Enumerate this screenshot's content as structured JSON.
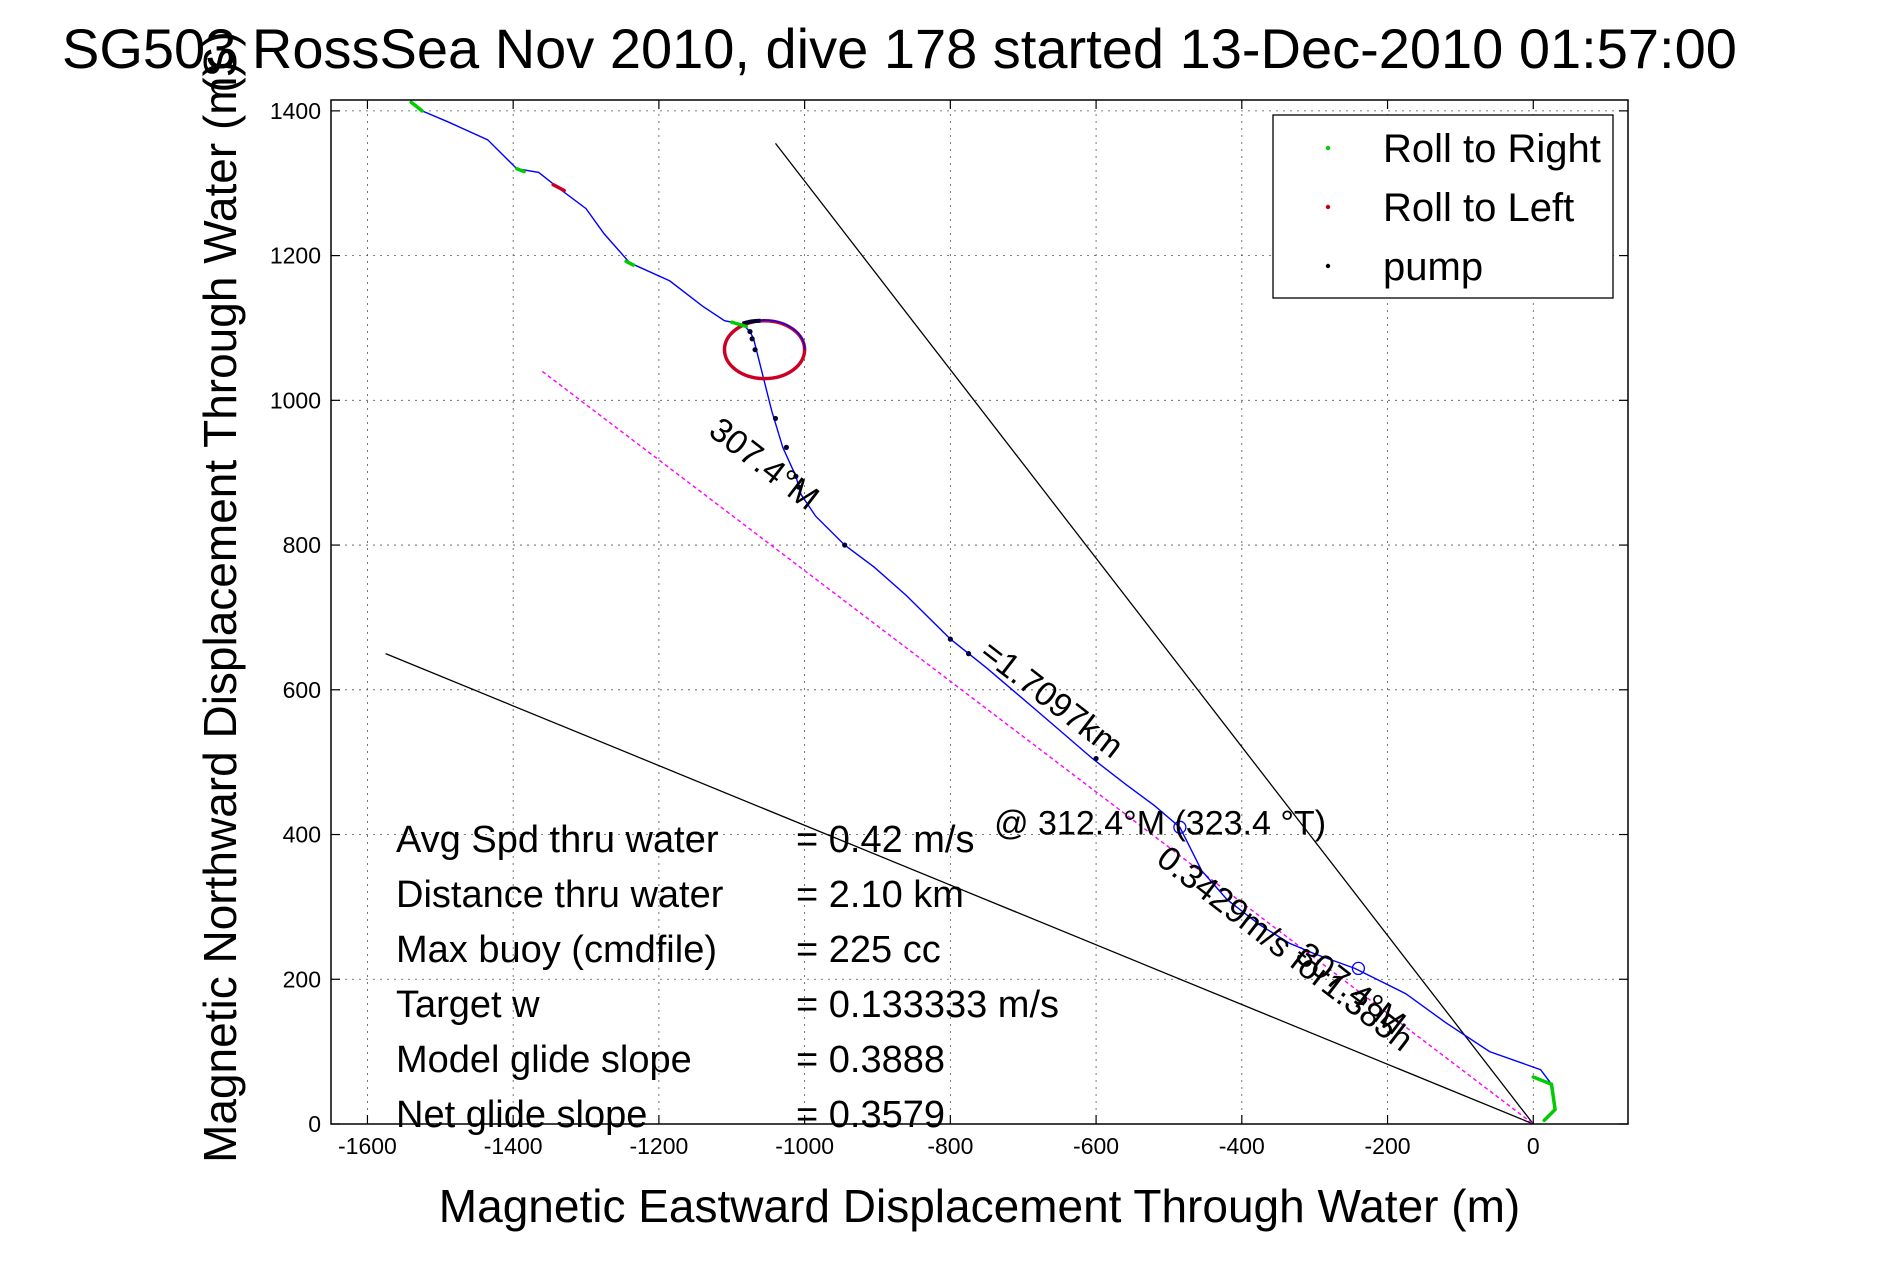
{
  "chart_data": {
    "type": "line",
    "title": "SG503 RossSea Nov 2010, dive 178 started 13-Dec-2010 01:57:00",
    "title_overlay": "(S)",
    "xlabel": "Magnetic Eastward Displacement Through Water (m)",
    "ylabel": "Magnetic Northward Displacement Through Water (m)",
    "xlim": [
      -1650,
      130
    ],
    "ylim": [
      0,
      1415
    ],
    "xticks": [
      -1600,
      -1400,
      -1200,
      -1000,
      -800,
      -600,
      -400,
      -200,
      0
    ],
    "yticks": [
      0,
      200,
      400,
      600,
      800,
      1000,
      1200,
      1400
    ],
    "grid": true,
    "legend_position": "top-right",
    "legend": [
      {
        "label": "Roll to Right",
        "color": "#00cc00"
      },
      {
        "label": "Roll to Left",
        "color": "#cc0000"
      },
      {
        "label": "pump",
        "color": "#000000"
      }
    ],
    "colors": {
      "track": "#0000ff",
      "right": "#00cc00",
      "left": "#cc0022",
      "pump": "#000033",
      "dashed": "#ff00ff",
      "lines": "#000000"
    },
    "track": [
      [
        30,
        20
      ],
      [
        25,
        55
      ],
      [
        10,
        75
      ],
      [
        -60,
        100
      ],
      [
        -120,
        140
      ],
      [
        -175,
        180
      ],
      [
        -245,
        215
      ],
      [
        -300,
        235
      ],
      [
        -335,
        250
      ],
      [
        -375,
        275
      ],
      [
        -420,
        310
      ],
      [
        -455,
        350
      ],
      [
        -485,
        410
      ],
      [
        -520,
        440
      ],
      [
        -560,
        470
      ],
      [
        -605,
        505
      ],
      [
        -680,
        570
      ],
      [
        -750,
        630
      ],
      [
        -800,
        670
      ],
      [
        -860,
        730
      ],
      [
        -905,
        770
      ],
      [
        -945,
        800
      ],
      [
        -985,
        840
      ],
      [
        -1005,
        870
      ],
      [
        -1012,
        895
      ],
      [
        -1030,
        935
      ],
      [
        -1045,
        985
      ],
      [
        -1060,
        1045
      ],
      [
        -1070,
        1085
      ],
      [
        -1075,
        1095
      ],
      [
        -1085,
        1105
      ],
      [
        -1110,
        1110
      ],
      [
        -1140,
        1130
      ],
      [
        -1185,
        1165
      ],
      [
        -1240,
        1190
      ],
      [
        -1275,
        1230
      ],
      [
        -1300,
        1265
      ],
      [
        -1340,
        1295
      ],
      [
        -1365,
        1315
      ],
      [
        -1395,
        1320
      ],
      [
        -1435,
        1360
      ],
      [
        -1490,
        1385
      ],
      [
        -1525,
        1400
      ],
      [
        -1540,
        1412
      ]
    ],
    "loop": {
      "center": [
        -1055,
        1070
      ],
      "rx": 55,
      "ry": 40
    },
    "roll_right_segments": [
      [
        [
          0,
          65
        ],
        [
          25,
          55
        ],
        [
          30,
          20
        ],
        [
          15,
          5
        ]
      ],
      [
        [
          -1395,
          1320
        ],
        [
          -1385,
          1316
        ]
      ],
      [
        [
          -1245,
          1192
        ],
        [
          -1235,
          1187
        ]
      ],
      [
        [
          -1540,
          1412
        ],
        [
          -1525,
          1400
        ]
      ],
      [
        [
          -1100,
          1108
        ],
        [
          -1080,
          1102
        ]
      ]
    ],
    "roll_left_segments": [
      [
        [
          -1345,
          1298
        ],
        [
          -1330,
          1290
        ]
      ]
    ],
    "pump_points": [
      [
        -1075,
        1095
      ],
      [
        -1072,
        1085
      ],
      [
        -1068,
        1070
      ],
      [
        -1040,
        975
      ],
      [
        -1025,
        935
      ],
      [
        -1012,
        895
      ],
      [
        -1008,
        880
      ],
      [
        -945,
        800
      ],
      [
        -800,
        670
      ],
      [
        -775,
        650
      ],
      [
        -600,
        505
      ]
    ],
    "markers": [
      [
        -485,
        410
      ],
      [
        -240,
        215
      ]
    ],
    "dashed_line": [
      [
        -1360,
        1040
      ],
      [
        0,
        0
      ]
    ],
    "heading_lines": [
      [
        [
          -1040,
          1355
        ],
        [
          0,
          0
        ]
      ],
      [
        [
          -1575,
          650
        ],
        [
          0,
          0
        ]
      ]
    ],
    "annotations": [
      {
        "text": "307.4°M",
        "x": -1065,
        "y": 900,
        "angle": 37.6
      },
      {
        "text": "=1.7097km",
        "x": -670,
        "y": 575,
        "angle": 37.6
      },
      {
        "text": "0.3429m/s for1.385h",
        "x": -350,
        "y": 230,
        "angle": 37.6
      },
      {
        "text": "307.4°M",
        "x": -260,
        "y": 175,
        "angle": 37.6
      },
      {
        "text": "@ 312.4°M (323.4 °T)",
        "x": -740,
        "y": 400,
        "angle": 0
      }
    ],
    "stats": [
      {
        "label": "Avg Spd thru water",
        "value": "=  0.42 m/s"
      },
      {
        "label": "Distance thru water",
        "value": "=  2.10 km"
      },
      {
        "label": "Max buoy (cmdfile)",
        "value": "= 225 cc"
      },
      {
        "label": "Target w",
        "value": "= 0.133333 m/s"
      },
      {
        "label": "Model glide slope",
        "value": "= 0.3888"
      },
      {
        "label": "Net glide slope",
        "value": "= 0.3579"
      }
    ]
  }
}
